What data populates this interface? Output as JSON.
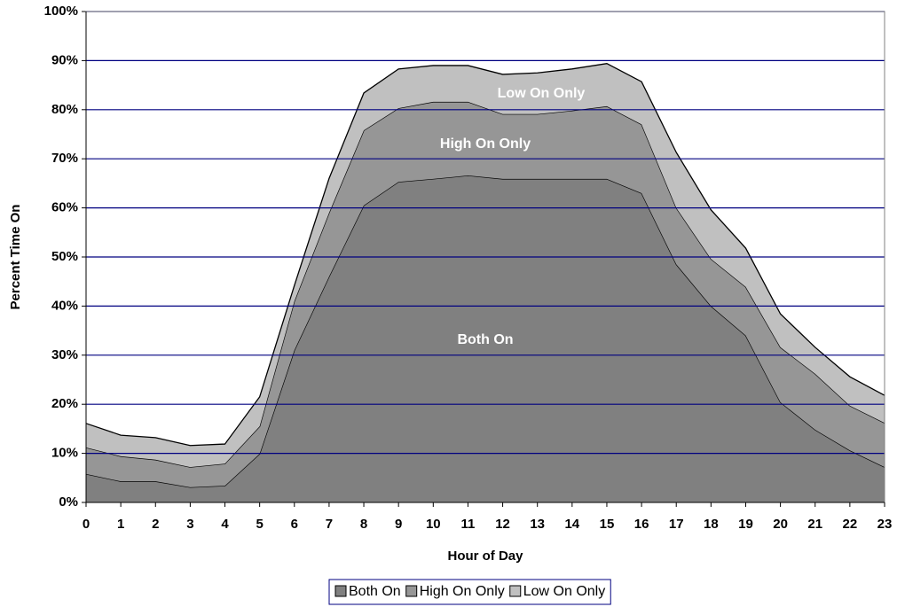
{
  "chart_data": {
    "type": "stacked_area",
    "x_label": "Hour of Day",
    "y_label": "Percent Time On",
    "categories": [
      "0",
      "1",
      "2",
      "3",
      "4",
      "5",
      "6",
      "7",
      "8",
      "9",
      "10",
      "11",
      "12",
      "13",
      "14",
      "15",
      "16",
      "17",
      "18",
      "19",
      "20",
      "21",
      "22",
      "23"
    ],
    "series": [
      {
        "name": "Both On",
        "color": "#808080",
        "values": [
          5.8,
          4.3,
          4.3,
          3.1,
          3.4,
          9.9,
          31,
          46,
          60.5,
          65.3,
          65.9,
          66.6,
          65.9,
          65.9,
          65.9,
          65.9,
          63,
          48.5,
          40,
          34,
          20.4,
          14.8,
          10.6,
          7.2
        ]
      },
      {
        "name": "High On Only",
        "color": "#969696",
        "values": [
          5.4,
          5.1,
          4.4,
          4.1,
          4.5,
          5.6,
          10,
          13,
          15.3,
          15,
          15.7,
          15,
          13.2,
          13.2,
          13.9,
          14.8,
          14,
          11.5,
          9.6,
          9.9,
          11.2,
          11.4,
          9.1,
          9
        ]
      },
      {
        "name": "Low On Only",
        "color": "#c0c0c0",
        "values": [
          4.9,
          4.3,
          4.5,
          4.4,
          4,
          6,
          3.2,
          7,
          7.6,
          8,
          7.4,
          7.4,
          8.1,
          8.4,
          8.5,
          8.7,
          8.7,
          11.3,
          10,
          7.9,
          6.8,
          5.4,
          5.9,
          5.6
        ]
      }
    ],
    "annotations": [
      "Both On",
      "High On Only",
      "Low On Only"
    ],
    "ylim": [
      0,
      100
    ],
    "yticks": [
      {
        "value": 0,
        "label": "0%"
      },
      {
        "value": 10,
        "label": "10%"
      },
      {
        "value": 20,
        "label": "20%"
      },
      {
        "value": 30,
        "label": "30%"
      },
      {
        "value": 40,
        "label": "40%"
      },
      {
        "value": 50,
        "label": "50%"
      },
      {
        "value": 60,
        "label": "60%"
      },
      {
        "value": 70,
        "label": "70%"
      },
      {
        "value": 80,
        "label": "80%"
      },
      {
        "value": 90,
        "label": "90%"
      },
      {
        "value": 100,
        "label": "100%"
      }
    ],
    "grid": true,
    "grid_color": "#000080",
    "legend": "bottom"
  }
}
